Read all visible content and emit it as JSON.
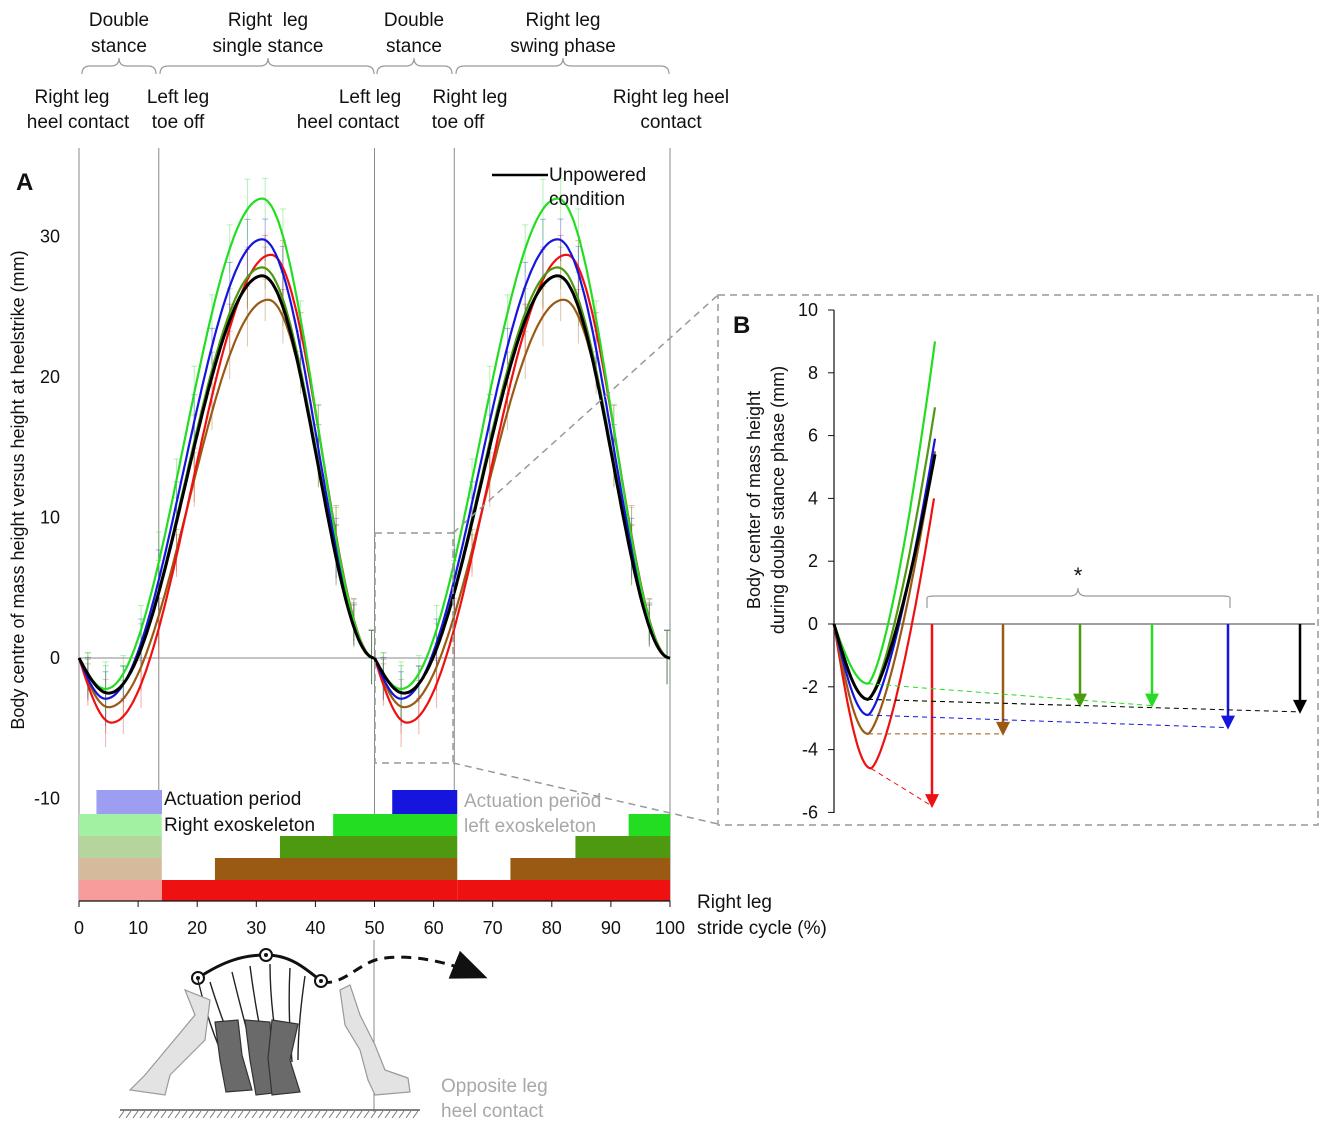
{
  "colors": {
    "green": "#22dd22",
    "blue": "#1515dd",
    "olive": "#4d9a10",
    "brown": "#9a5a14",
    "red": "#ee1111",
    "black": "#000000",
    "gray_text": "#a8a8a8"
  },
  "phases": {
    "double_stance_1": [
      "Double",
      "stance"
    ],
    "single_stance": [
      "Right  leg",
      "single stance"
    ],
    "double_stance_2": [
      "Double",
      "stance"
    ],
    "swing": [
      "Right leg",
      "swing phase"
    ]
  },
  "events": {
    "e1": [
      "Right leg",
      "heel contact"
    ],
    "e2": [
      "Left leg",
      "toe off"
    ],
    "e3": [
      "Left leg",
      "heel contact"
    ],
    "e4": [
      "Right leg",
      "toe off"
    ],
    "e5": [
      "Right leg heel",
      "contact"
    ]
  },
  "panel_a": {
    "label": "A",
    "ylabel": "Body centre of mass height versus height at heelstrike (mm)",
    "xlabel": [
      "Right leg",
      "stride cycle (%)"
    ],
    "legend": [
      "Unpowered",
      "condition"
    ],
    "actuation_right": [
      "Actuation period",
      "Right exoskeleton"
    ],
    "actuation_left": [
      "Actuation period",
      "left exoskeleton"
    ],
    "opposite": [
      "Opposite leg",
      "heel contact"
    ]
  },
  "panel_b": {
    "label": "B",
    "ylabel": [
      "Body center of mass height",
      "during double stance phase  (mm)"
    ],
    "star": "*"
  },
  "chart_data": [
    {
      "type": "line",
      "panel": "A",
      "xlabel": "Right leg stride cycle (%)",
      "ylabel": "Body centre of mass height versus height at heelstrike (mm)",
      "xlim": [
        0,
        100
      ],
      "ylim": [
        -16,
        35
      ],
      "xticks": [
        "0",
        "10",
        "20",
        "30",
        "40",
        "50",
        "60",
        "70",
        "80",
        "90",
        "100"
      ],
      "yticks": [
        "-10",
        "0",
        "10",
        "20",
        "30"
      ],
      "event_lines_pct": [
        0,
        13.5,
        50,
        63.5,
        100
      ],
      "series": [
        {
          "name": "",
          "color": "#22dd22",
          "min": -2.2,
          "max": 32.7,
          "min_x": 4.5,
          "max_x": 31
        },
        {
          "name": "",
          "color": "#1515dd",
          "min": -2.9,
          "max": 29.8,
          "min_x": 4.5,
          "max_x": 31
        },
        {
          "name": "",
          "color": "#4d9a10",
          "min": -2.5,
          "max": 27.8,
          "min_x": 5,
          "max_x": 31
        },
        {
          "name": "",
          "color": "#9a5a14",
          "min": -3.5,
          "max": 25.5,
          "min_x": 5,
          "max_x": 32
        },
        {
          "name": "",
          "color": "#ee1111",
          "min": -4.6,
          "max": 28.7,
          "min_x": 5.5,
          "max_x": 32.5
        },
        {
          "name": "Unpowered condition",
          "color": "#000000",
          "min": -2.5,
          "max": 27.2,
          "min_x": 5,
          "max_x": 31
        }
      ],
      "actuation_bars": [
        {
          "color": "#1515dd",
          "right": [
            3,
            14
          ],
          "left": [
            53,
            64
          ]
        },
        {
          "color": "#22dd22",
          "right": [
            43,
            64
          ],
          "left": [
            93,
            100
          ]
        },
        {
          "color": "#4d9a10",
          "right": [
            34,
            64
          ],
          "left": [
            84,
            100
          ]
        },
        {
          "color": "#9a5a14",
          "right": [
            23,
            64
          ],
          "left": [
            73,
            100
          ]
        },
        {
          "color": "#ee1111",
          "right": [
            14,
            64
          ],
          "left": [
            64,
            100
          ]
        }
      ]
    },
    {
      "type": "line",
      "panel": "B",
      "ylabel": "Body center of mass height during double stance phase (mm)",
      "ylim": [
        -6,
        10
      ],
      "yticks": [
        "-6",
        "-4",
        "-2",
        "0",
        "2",
        "4",
        "6",
        "8",
        "10"
      ],
      "series": [
        {
          "name": "",
          "color": "#ee1111",
          "min": -4.6,
          "end": 4.0,
          "arrow_to": -5.8
        },
        {
          "name": "",
          "color": "#9a5a14",
          "min": -3.5,
          "end": 5.5,
          "arrow_to": -3.5
        },
        {
          "name": "",
          "color": "#4d9a10",
          "min": -2.4,
          "end": 6.9,
          "arrow_to": -2.6
        },
        {
          "name": "",
          "color": "#22dd22",
          "min": -1.9,
          "end": 9.0,
          "arrow_to": -2.6
        },
        {
          "name": "",
          "color": "#1515dd",
          "min": -2.9,
          "end": 5.9,
          "arrow_to": -3.3
        },
        {
          "name": "Unpowered condition",
          "color": "#000000",
          "min": -2.4,
          "end": 5.4,
          "arrow_to": -2.8
        }
      ]
    }
  ]
}
